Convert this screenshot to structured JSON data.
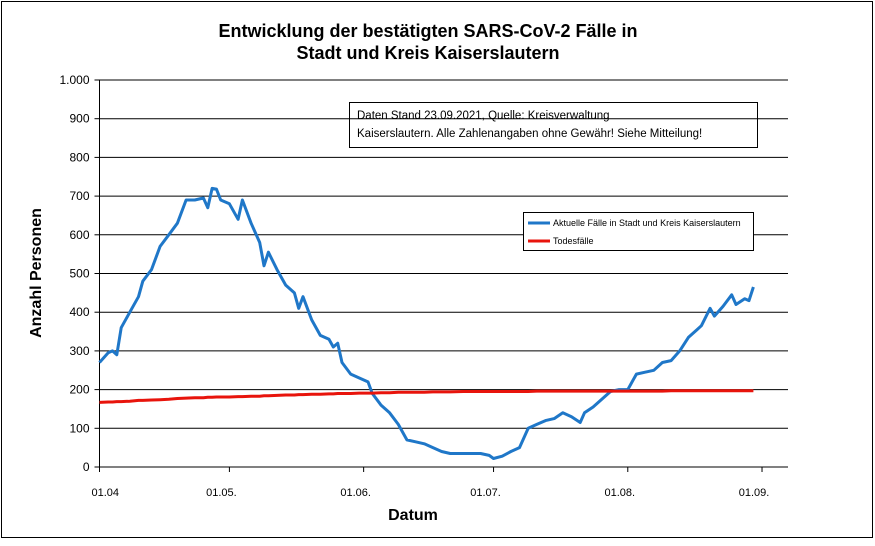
{
  "chart_data": {
    "type": "line",
    "title": [
      "Entwicklung der bestätigten SARS-CoV-2 Fälle in",
      "Stadt und Kreis Kaiserslautern"
    ],
    "x_label": "Datum",
    "y_label": "Anzahl Personen",
    "annotation": [
      "Daten Stand 23.09.2021, Quelle: Kreisverwaltung",
      "Kaiserslautern. Alle Zahlenangaben ohne Gewähr! Siehe Mitteilung!"
    ],
    "x": [
      "01.04",
      "03.04",
      "04.04",
      "05.04",
      "06.04",
      "08.04",
      "10.04",
      "11.04",
      "13.04",
      "15.04",
      "17.04",
      "19.04",
      "21.04",
      "23.04",
      "25.04",
      "26.04",
      "27.04",
      "28.04",
      "29.04",
      "01.05",
      "03.05",
      "04.05",
      "06.05",
      "08.05",
      "09.05",
      "10.05",
      "12.05",
      "14.05",
      "16.05",
      "17.05",
      "18.05",
      "20.05",
      "22.05",
      "24.05",
      "25.05",
      "26.05",
      "27.05",
      "29.05",
      "31.05",
      "02.06",
      "03.06",
      "05.06",
      "07.06",
      "09.06",
      "11.06",
      "13.06",
      "15.06",
      "17.06",
      "19.06",
      "21.06",
      "24.06",
      "27.06",
      "28.06",
      "30.06",
      "01.07",
      "03.07",
      "05.07",
      "07.07",
      "09.07",
      "11.07",
      "13.07",
      "15.07",
      "17.07",
      "19.07",
      "21.07",
      "22.07",
      "24.07",
      "26.07",
      "28.07",
      "30.07",
      "01.08",
      "03.08",
      "05.08",
      "07.08",
      "09.08",
      "11.08",
      "13.08",
      "15.08",
      "17.08",
      "18.08",
      "20.08",
      "21.08",
      "23.08",
      "25.08",
      "26.08",
      "28.08",
      "29.08",
      "30.08"
    ],
    "series": [
      {
        "name": "Aktuelle Fälle in Stadt und Kreis Kaiserslautern",
        "color": "#1f77c8",
        "values": [
          270,
          295,
          300,
          290,
          360,
          400,
          440,
          480,
          510,
          570,
          600,
          630,
          690,
          690,
          695,
          670,
          720,
          718,
          690,
          680,
          640,
          690,
          630,
          580,
          520,
          555,
          510,
          470,
          450,
          410,
          440,
          380,
          340,
          330,
          310,
          320,
          270,
          240,
          230,
          220,
          190,
          160,
          140,
          110,
          70,
          65,
          60,
          50,
          40,
          35,
          35,
          35,
          35,
          30,
          22,
          28,
          40,
          50,
          100,
          110,
          120,
          125,
          140,
          130,
          115,
          140,
          155,
          175,
          195,
          200,
          200,
          240,
          245,
          250,
          270,
          275,
          300,
          335,
          355,
          365,
          410,
          390,
          415,
          445,
          420,
          435,
          430,
          465
        ]
      },
      {
        "name": "Todesfälle",
        "color": "#e8140c",
        "values": [
          167,
          168,
          168,
          169,
          169,
          170,
          172,
          172,
          173,
          174,
          175,
          177,
          178,
          179,
          179,
          180,
          180,
          181,
          181,
          181,
          182,
          182,
          183,
          183,
          184,
          184,
          185,
          186,
          186,
          187,
          187,
          188,
          188,
          189,
          189,
          190,
          190,
          190,
          191,
          191,
          191,
          192,
          192,
          193,
          193,
          193,
          193,
          194,
          194,
          194,
          195,
          195,
          195,
          195,
          195,
          195,
          195,
          195,
          195,
          196,
          196,
          196,
          196,
          196,
          196,
          196,
          196,
          196,
          196,
          196,
          196,
          196,
          196,
          196,
          196,
          197,
          197,
          197,
          197,
          197,
          197,
          197,
          197,
          197,
          197,
          197,
          197,
          197
        ]
      }
    ],
    "xlim": [
      "01.04",
      "07.09"
    ],
    "xticks": [
      {
        "value": "01.04",
        "label": "01.04"
      },
      {
        "value": "01.05",
        "label": "01.05."
      },
      {
        "value": "01.06",
        "label": "01.06."
      },
      {
        "value": "01.07",
        "label": "01.07."
      },
      {
        "value": "01.08",
        "label": "01.08."
      },
      {
        "value": "01.09",
        "label": "01.09."
      }
    ],
    "ylim": [
      0,
      1000
    ],
    "yticks": [
      0,
      100,
      200,
      300,
      400,
      500,
      600,
      700,
      800,
      900,
      {
        "value": 1000,
        "label": "1.000"
      }
    ],
    "grid": true,
    "legend": "right"
  }
}
